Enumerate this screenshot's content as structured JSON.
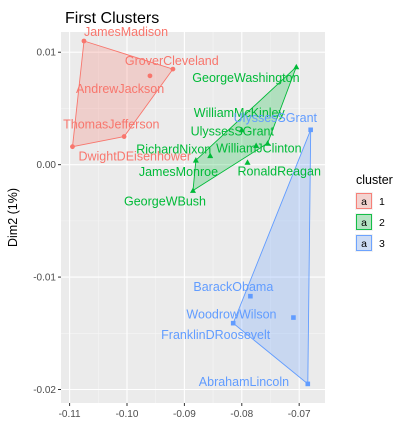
{
  "chart_data": {
    "type": "scatter",
    "title": "First Clusters",
    "xlabel": "",
    "ylabel": "Dim2 (1%)",
    "xlim": [
      -0.1115,
      -0.0655
    ],
    "ylim": [
      -0.0212,
      0.0118
    ],
    "xticks": [
      -0.11,
      -0.1,
      -0.09,
      -0.08,
      -0.07
    ],
    "xtick_labels": [
      "-0.11",
      "-0.10",
      "-0.09",
      "-0.08",
      "-0.07"
    ],
    "yticks": [
      0.01,
      0.0,
      -0.01,
      -0.02
    ],
    "ytick_labels": [
      "0.01",
      "0.00",
      "-0.01",
      "-0.02"
    ],
    "grid": true,
    "legend": {
      "title": "cluster",
      "position": "right",
      "entries": [
        {
          "label": "1",
          "color": "#F8766D"
        },
        {
          "label": "2",
          "color": "#00BA38"
        },
        {
          "label": "3",
          "color": "#619CFF"
        }
      ]
    },
    "series": [
      {
        "cluster": "1",
        "color": "#F8766D",
        "marker": "circle",
        "points": [
          {
            "label": "JamesMadison",
            "x": -0.1075,
            "y": 0.011
          },
          {
            "label": "GroverCleveland",
            "x": -0.092,
            "y": 0.0085
          },
          {
            "label": "AndrewJackson",
            "x": -0.096,
            "y": 0.0079
          },
          {
            "label": "ThomasJefferson",
            "x": -0.1005,
            "y": 0.0025
          },
          {
            "label": "DwightDEisenhower",
            "x": -0.1095,
            "y": 0.0016
          }
        ],
        "hull": [
          "JamesMadison",
          "GroverCleveland",
          "ThomasJefferson",
          "DwightDEisenhower"
        ]
      },
      {
        "cluster": "2",
        "color": "#00BA38",
        "marker": "triangle",
        "points": [
          {
            "label": "GeorgeWashington",
            "x": -0.0705,
            "y": 0.0087
          },
          {
            "label": "WilliamMcKinley",
            "x": -0.08,
            "y": 0.0031
          },
          {
            "label": "RichardNixon",
            "x": -0.0855,
            "y": 0.0008
          },
          {
            "label": "UlyssesSGrant",
            "x": -0.0755,
            "y": 0.0019
          },
          {
            "label": "WilliamJClinton",
            "x": -0.0775,
            "y": 0.0017
          },
          {
            "label": "JamesMonroe",
            "x": -0.088,
            "y": 0.0004
          },
          {
            "label": "RonaldReagan",
            "x": -0.079,
            "y": 0.0002
          },
          {
            "label": "GeorgeWBush",
            "x": -0.0885,
            "y": -0.0023
          }
        ],
        "hull": [
          "GeorgeWashington",
          "UlyssesSGrant",
          "GeorgeWBush",
          "JamesMonroe"
        ]
      },
      {
        "cluster": "3",
        "color": "#619CFF",
        "marker": "square",
        "points": [
          {
            "label": "UlyssesSGrant",
            "x": -0.068,
            "y": 0.0031
          },
          {
            "label": "BarackObama",
            "x": -0.0785,
            "y": -0.0117
          },
          {
            "label": "WoodrowWilson",
            "x": -0.071,
            "y": -0.0136
          },
          {
            "label": "FranklinDRoosevelt",
            "x": -0.0815,
            "y": -0.0141
          },
          {
            "label": "AbrahamLincoln",
            "x": -0.0685,
            "y": -0.0195
          }
        ],
        "hull": [
          "UlyssesSGrant",
          "AbrahamLincoln",
          "FranklinDRoosevelt"
        ]
      }
    ]
  }
}
